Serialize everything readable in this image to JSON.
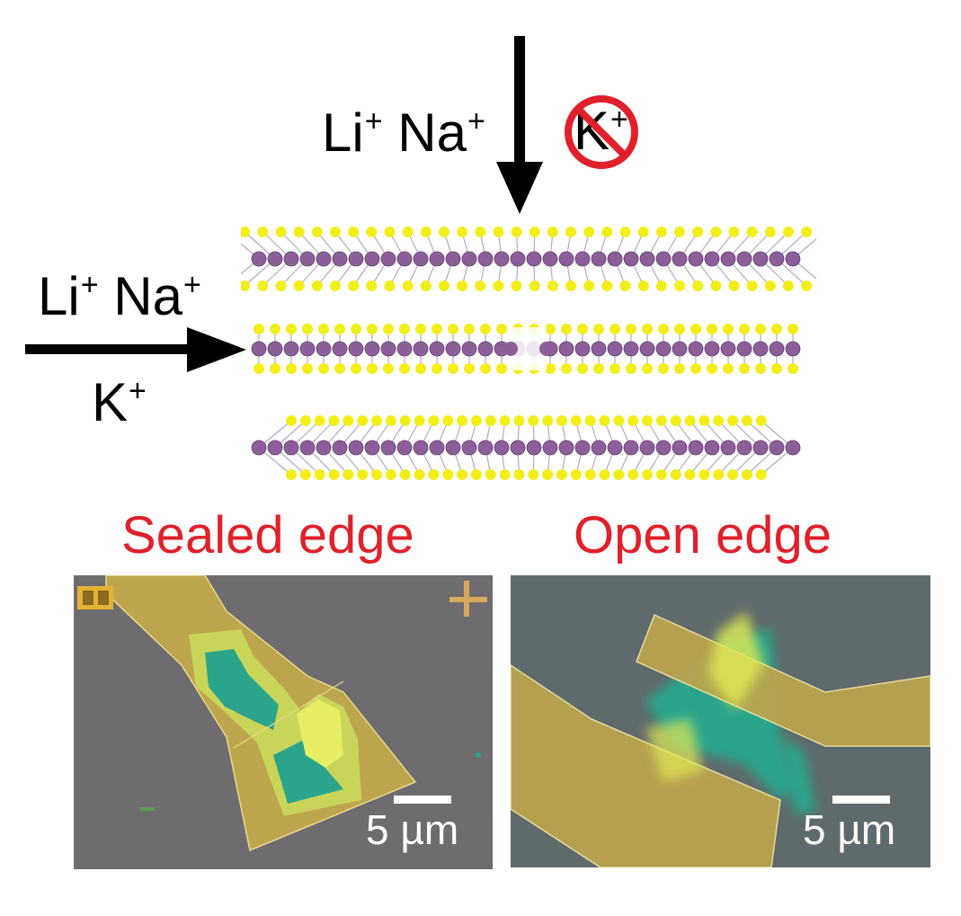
{
  "top_ions": {
    "permitted": [
      {
        "sym": "Li",
        "charge": "+"
      },
      {
        "sym": "Na",
        "charge": "+"
      }
    ],
    "blocked": {
      "sym": "K",
      "charge": "+"
    }
  },
  "side_ions": {
    "row1": [
      {
        "sym": "Li",
        "charge": "+"
      },
      {
        "sym": "Na",
        "charge": "+"
      }
    ],
    "row2": {
      "sym": "K",
      "charge": "+"
    }
  },
  "panels": {
    "left": {
      "title": "Sealed edge",
      "scale": "5 µm"
    },
    "right": {
      "title": "Open edge",
      "scale": "5 µm"
    }
  },
  "colors": {
    "sulfur": "#f2ee1a",
    "metal": "#8d5f9a",
    "forbidden": "#e0202a",
    "title": "#e0202a",
    "substrate": "#6e6d6d",
    "electrode": "#c9b34e",
    "flake": "#2aa58c"
  },
  "icons": [
    "down-arrow-icon",
    "right-arrow-icon",
    "prohibited-icon"
  ]
}
